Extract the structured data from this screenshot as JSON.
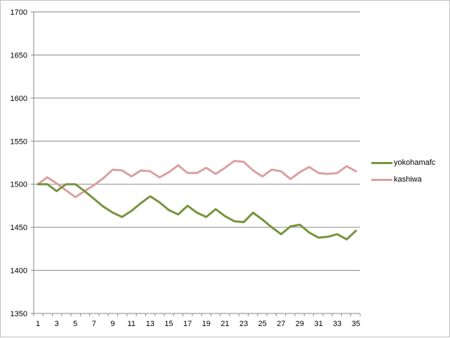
{
  "chart_data": {
    "type": "line",
    "title": "",
    "xlabel": "",
    "ylabel": "",
    "ylim": [
      1350,
      1700
    ],
    "yticks": [
      1350,
      1400,
      1450,
      1500,
      1550,
      1600,
      1650,
      1700
    ],
    "x": [
      1,
      2,
      3,
      4,
      5,
      6,
      7,
      8,
      9,
      10,
      11,
      12,
      13,
      14,
      15,
      16,
      17,
      18,
      19,
      20,
      21,
      22,
      23,
      24,
      25,
      26,
      27,
      28,
      29,
      30,
      31,
      32,
      33,
      34,
      35
    ],
    "xticks": [
      1,
      3,
      5,
      7,
      9,
      11,
      13,
      15,
      17,
      19,
      21,
      23,
      25,
      27,
      29,
      31,
      33,
      35
    ],
    "grid": "horizontal",
    "legend_position": "right",
    "series": [
      {
        "name": "yokohamafc",
        "color": "#77933c",
        "values": [
          1500,
          1500,
          1492,
          1500,
          1500,
          1492,
          1483,
          1474,
          1467,
          1462,
          1469,
          1478,
          1486,
          1479,
          1470,
          1465,
          1475,
          1467,
          1462,
          1471,
          1463,
          1457,
          1456,
          1467,
          1459,
          1450,
          1442,
          1451,
          1453,
          1444,
          1438,
          1439,
          1442,
          1436,
          1446
        ]
      },
      {
        "name": "kashiwa",
        "color": "#d9a1a0",
        "values": [
          1500,
          1508,
          1501,
          1493,
          1485,
          1492,
          1499,
          1507,
          1517,
          1516,
          1509,
          1516,
          1515,
          1508,
          1514,
          1522,
          1513,
          1513,
          1519,
          1512,
          1519,
          1527,
          1526,
          1516,
          1509,
          1517,
          1515,
          1506,
          1514,
          1520,
          1513,
          1512,
          1513,
          1521,
          1515
        ]
      }
    ]
  }
}
